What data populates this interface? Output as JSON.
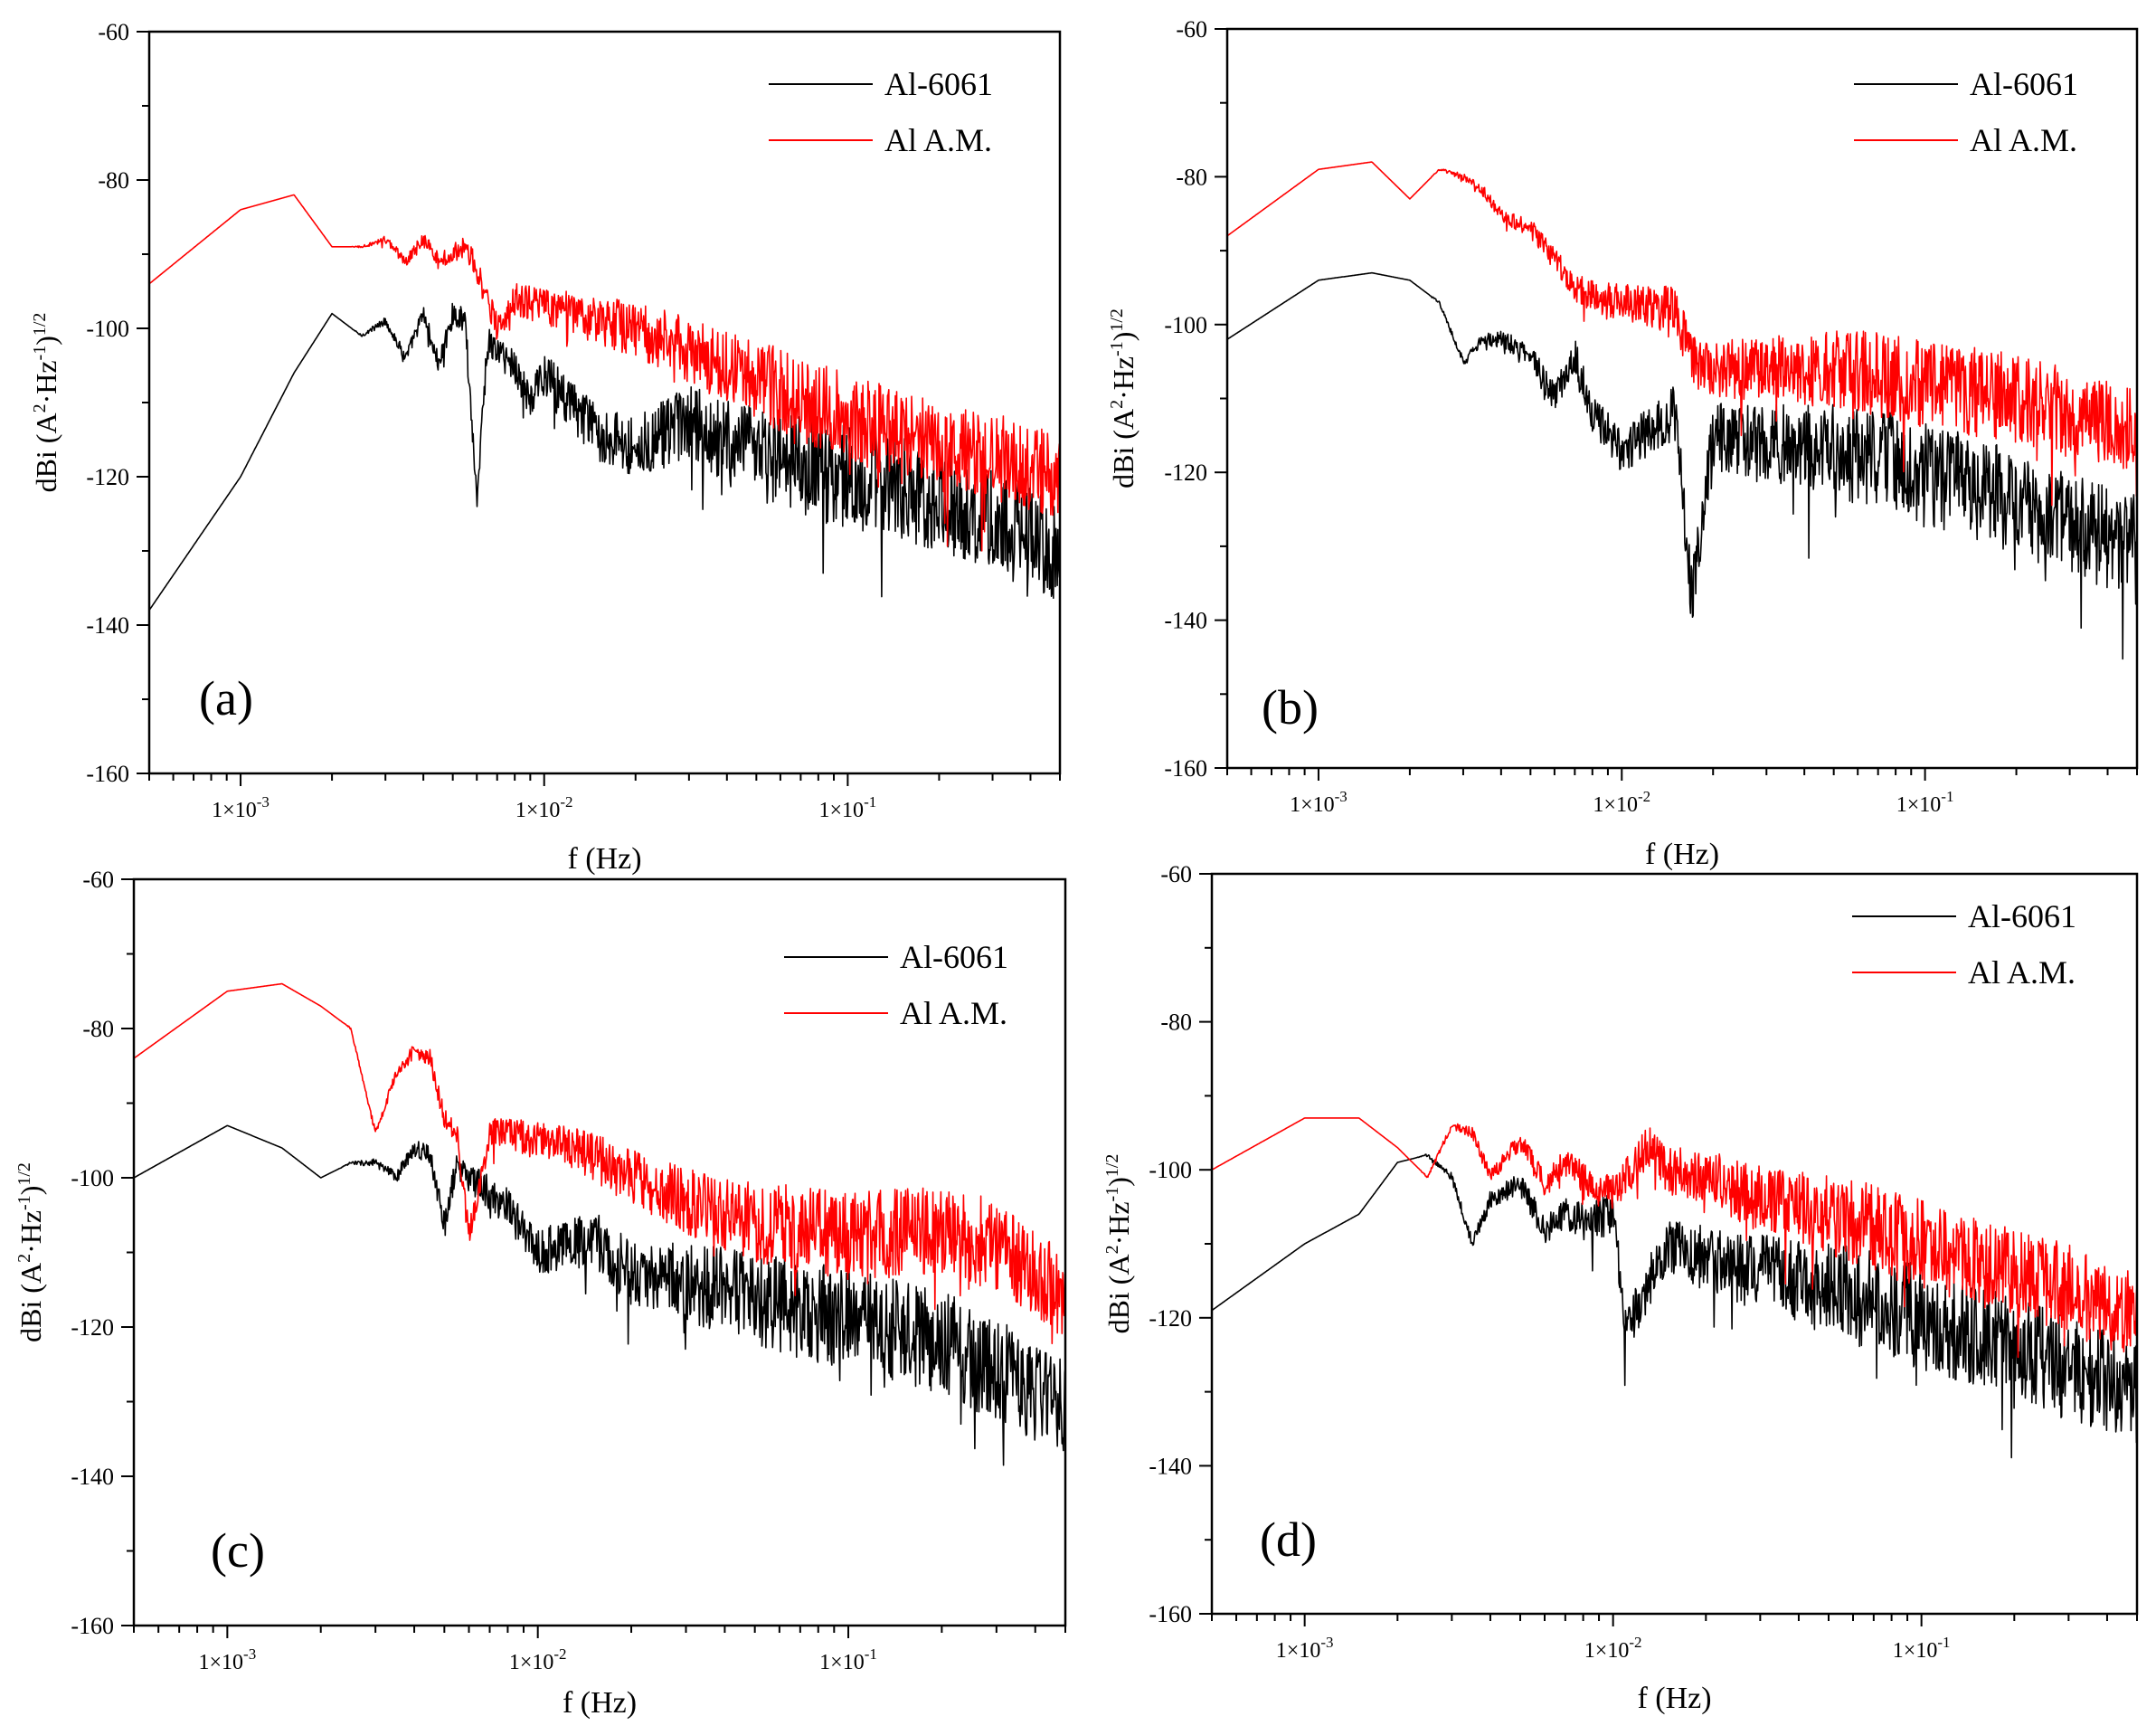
{
  "figure": {
    "panels": [
      "a",
      "b",
      "c",
      "d"
    ]
  },
  "chart_data": [
    {
      "panel": "(a)",
      "type": "line",
      "xscale": "log",
      "xlim": [
        0.0005,
        0.5
      ],
      "ylim": [
        -160,
        -60
      ],
      "xlabel": "f (Hz)",
      "ylabel": "dBi (A²·Hz⁻¹)¹ᐟ²",
      "xticks": [
        "1×10⁻³",
        "1×10⁻²",
        "1×10⁻¹"
      ],
      "yticks": [
        "-60",
        "-80",
        "-100",
        "-120",
        "-140",
        "-160"
      ],
      "legend_position": "top-right",
      "series": [
        {
          "name": "Al-6061",
          "color": "#000000",
          "x": [
            0.0005,
            0.001,
            0.0015,
            0.002,
            0.0025,
            0.003,
            0.0035,
            0.004,
            0.0045,
            0.005,
            0.0055,
            0.006,
            0.0065,
            0.007,
            0.008,
            0.009,
            0.01,
            0.012,
            0.015,
            0.02,
            0.03,
            0.05,
            0.1,
            0.2,
            0.3,
            0.5
          ],
          "y": [
            -138,
            -120,
            -106,
            -98,
            -101,
            -99,
            -104,
            -98,
            -105,
            -98,
            -99,
            -123,
            -102,
            -103,
            -105,
            -110,
            -106,
            -110,
            -114,
            -116,
            -113,
            -117,
            -120,
            -123,
            -126,
            -130
          ],
          "noise": 7
        },
        {
          "name": "Al A.M.",
          "color": "#ff0000",
          "x": [
            0.0005,
            0.001,
            0.0015,
            0.002,
            0.0025,
            0.003,
            0.0035,
            0.004,
            0.0045,
            0.005,
            0.0055,
            0.006,
            0.007,
            0.008,
            0.01,
            0.015,
            0.02,
            0.03,
            0.05,
            0.1,
            0.2,
            0.3,
            0.5
          ],
          "y": [
            -94,
            -84,
            -82,
            -89,
            -89,
            -88,
            -91,
            -88,
            -91,
            -90,
            -89,
            -92,
            -100,
            -96,
            -97,
            -99,
            -100,
            -103,
            -107,
            -112,
            -116,
            -117,
            -120
          ],
          "noise": 6
        }
      ]
    },
    {
      "panel": "(b)",
      "type": "line",
      "xscale": "log",
      "xlim": [
        0.0005,
        0.5
      ],
      "ylim": [
        -160,
        -60
      ],
      "xlabel": "f (Hz)",
      "ylabel": "dBi (A²·Hz⁻¹)¹ᐟ²",
      "xticks": [
        "1×10⁻³",
        "1×10⁻²",
        "1×10⁻¹"
      ],
      "yticks": [
        "-60",
        "-80",
        "-100",
        "-120",
        "-140",
        "-160"
      ],
      "legend_position": "top-right",
      "series": [
        {
          "name": "Al-6061",
          "color": "#000000",
          "x": [
            0.0005,
            0.001,
            0.0015,
            0.002,
            0.0025,
            0.003,
            0.0035,
            0.004,
            0.005,
            0.006,
            0.007,
            0.008,
            0.01,
            0.015,
            0.017,
            0.02,
            0.03,
            0.05,
            0.1,
            0.2,
            0.3,
            0.5
          ],
          "y": [
            -102,
            -94,
            -93,
            -94,
            -97,
            -105,
            -102,
            -102,
            -104,
            -110,
            -104,
            -112,
            -117,
            -112,
            -137,
            -115,
            -116,
            -117,
            -120,
            -124,
            -127,
            -130
          ],
          "noise": 7
        },
        {
          "name": "Al A.M.",
          "color": "#ff0000",
          "x": [
            0.0005,
            0.001,
            0.0015,
            0.002,
            0.0025,
            0.003,
            0.0035,
            0.004,
            0.005,
            0.006,
            0.007,
            0.008,
            0.01,
            0.015,
            0.017,
            0.02,
            0.03,
            0.05,
            0.1,
            0.2,
            0.3,
            0.5
          ],
          "y": [
            -88,
            -79,
            -78,
            -83,
            -79,
            -80,
            -82,
            -85,
            -87,
            -91,
            -95,
            -96,
            -97,
            -98,
            -105,
            -106,
            -106,
            -106,
            -108,
            -110,
            -112,
            -115
          ],
          "noise": 6
        }
      ]
    },
    {
      "panel": "(c)",
      "type": "line",
      "xscale": "log",
      "xlim": [
        0.0005,
        0.5
      ],
      "ylim": [
        -160,
        -60
      ],
      "xlabel": "f (Hz)",
      "ylabel": "dBi (A²·Hz⁻¹)¹ᐟ²",
      "xticks": [
        "1×10⁻³",
        "1×10⁻²",
        "1×10⁻¹"
      ],
      "yticks": [
        "-60",
        "-80",
        "-100",
        "-120",
        "-140",
        "-160"
      ],
      "legend_position": "top-right",
      "series": [
        {
          "name": "Al-6061",
          "color": "#000000",
          "x": [
            0.0005,
            0.001,
            0.0015,
            0.002,
            0.0025,
            0.003,
            0.0035,
            0.004,
            0.0045,
            0.005,
            0.0055,
            0.006,
            0.007,
            0.008,
            0.01,
            0.015,
            0.02,
            0.03,
            0.05,
            0.1,
            0.2,
            0.3,
            0.5
          ],
          "y": [
            -100,
            -93,
            -96,
            -100,
            -98,
            -98,
            -100,
            -96,
            -97,
            -106,
            -98,
            -100,
            -102,
            -104,
            -110,
            -108,
            -113,
            -114,
            -116,
            -119,
            -122,
            -126,
            -130
          ],
          "noise": 7
        },
        {
          "name": "Al A.M.",
          "color": "#ff0000",
          "x": [
            0.0005,
            0.001,
            0.0015,
            0.002,
            0.0025,
            0.003,
            0.0035,
            0.004,
            0.0045,
            0.005,
            0.0055,
            0.006,
            0.007,
            0.008,
            0.01,
            0.015,
            0.02,
            0.03,
            0.05,
            0.1,
            0.2,
            0.3,
            0.5
          ],
          "y": [
            -84,
            -75,
            -74,
            -77,
            -80,
            -94,
            -86,
            -83,
            -84,
            -92,
            -94,
            -108,
            -94,
            -94,
            -95,
            -97,
            -100,
            -103,
            -106,
            -108,
            -107,
            -109,
            -116
          ],
          "noise": 6
        }
      ]
    },
    {
      "panel": "(d)",
      "type": "line",
      "xscale": "log",
      "xlim": [
        0.0005,
        0.5
      ],
      "ylim": [
        -160,
        -60
      ],
      "xlabel": "f (Hz)",
      "ylabel": "dBi (A²·Hz⁻¹)¹ᐟ²",
      "xticks": [
        "1×10⁻³",
        "1×10⁻²",
        "1×10⁻¹"
      ],
      "yticks": [
        "-60",
        "-80",
        "-100",
        "-120",
        "-140",
        "-160"
      ],
      "legend_position": "top-right",
      "series": [
        {
          "name": "Al-6061",
          "color": "#000000",
          "x": [
            0.0005,
            0.001,
            0.0015,
            0.002,
            0.0025,
            0.003,
            0.0035,
            0.004,
            0.005,
            0.006,
            0.007,
            0.008,
            0.01,
            0.011,
            0.015,
            0.02,
            0.03,
            0.05,
            0.1,
            0.2,
            0.3,
            0.5
          ],
          "y": [
            -119,
            -110,
            -106,
            -99,
            -98,
            -101,
            -110,
            -104,
            -102,
            -108,
            -106,
            -107,
            -106,
            -122,
            -110,
            -112,
            -114,
            -116,
            -120,
            -124,
            -127,
            -130
          ],
          "noise": 7
        },
        {
          "name": "Al A.M.",
          "color": "#ff0000",
          "x": [
            0.0005,
            0.001,
            0.0015,
            0.002,
            0.0025,
            0.003,
            0.0035,
            0.004,
            0.005,
            0.006,
            0.007,
            0.008,
            0.01,
            0.013,
            0.015,
            0.02,
            0.03,
            0.05,
            0.1,
            0.2,
            0.3,
            0.5
          ],
          "y": [
            -100,
            -93,
            -93,
            -97,
            -101,
            -94,
            -95,
            -101,
            -96,
            -102,
            -99,
            -101,
            -103,
            -97,
            -100,
            -101,
            -104,
            -106,
            -110,
            -114,
            -116,
            -120
          ],
          "noise": 6
        }
      ]
    }
  ]
}
